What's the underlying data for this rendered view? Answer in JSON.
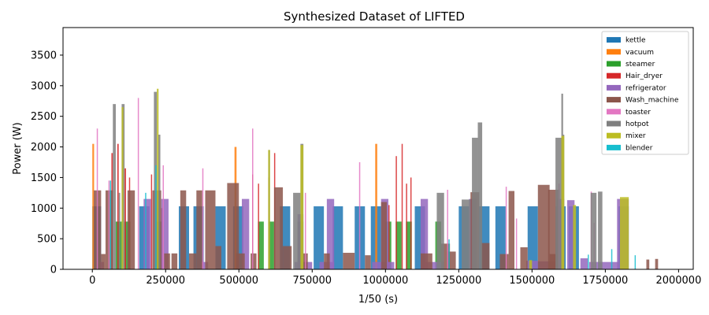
{
  "chart_data": {
    "type": "bar",
    "title": "Synthesized Dataset of LIFTED",
    "xlabel": "1/50 (s)",
    "ylabel": "Power (W)",
    "xlim": [
      -100000,
      2050000
    ],
    "ylim": [
      0,
      3950
    ],
    "xticks": [
      0,
      250000,
      500000,
      750000,
      1000000,
      1250000,
      1500000,
      1750000,
      2000000
    ],
    "xtick_labels": [
      "0",
      "250000",
      "500000",
      "750000",
      "1000000",
      "1250000",
      "1500000",
      "1750000",
      "2000000"
    ],
    "yticks": [
      0,
      500,
      1000,
      1500,
      2000,
      2500,
      3000,
      3500
    ],
    "ytick_labels": [
      "0",
      "500",
      "1000",
      "1500",
      "2000",
      "2500",
      "3000",
      "3500"
    ],
    "legend_position": "top-right",
    "grid": false,
    "series": [
      {
        "name": "kettle",
        "color": "#1f77b4",
        "bars": [
          [
            0,
            30000,
            1030
          ],
          [
            160000,
            195000,
            1030
          ],
          [
            295000,
            330000,
            1030
          ],
          [
            345000,
            380000,
            1030
          ],
          [
            420000,
            455000,
            1030
          ],
          [
            480000,
            515000,
            1030
          ],
          [
            640000,
            675000,
            1030
          ],
          [
            755000,
            790000,
            1030
          ],
          [
            820000,
            855000,
            1030
          ],
          [
            895000,
            930000,
            1030
          ],
          [
            950000,
            985000,
            1030
          ],
          [
            1100000,
            1135000,
            1030
          ],
          [
            1250000,
            1285000,
            1030
          ],
          [
            1320000,
            1355000,
            1030
          ],
          [
            1375000,
            1410000,
            1030
          ],
          [
            1485000,
            1520000,
            1030
          ],
          [
            1580000,
            1615000,
            1030
          ],
          [
            1625000,
            1660000,
            1030
          ],
          [
            1795000,
            1830000,
            1030
          ]
        ]
      },
      {
        "name": "vacuum",
        "color": "#ff7f0e",
        "bars": [
          [
            0,
            6000,
            2050
          ],
          [
            485000,
            492000,
            2000
          ],
          [
            965000,
            972000,
            2050
          ]
        ]
      },
      {
        "name": "steamer",
        "color": "#2ca02c",
        "bars": [
          [
            80000,
            100000,
            780
          ],
          [
            110000,
            130000,
            780
          ],
          [
            215000,
            235000,
            780
          ],
          [
            565000,
            585000,
            780
          ],
          [
            600000,
            620000,
            780
          ],
          [
            700000,
            720000,
            780
          ],
          [
            1000000,
            1020000,
            780
          ],
          [
            1035000,
            1055000,
            780
          ],
          [
            1070000,
            1090000,
            780
          ],
          [
            1170000,
            1190000,
            780
          ]
        ]
      },
      {
        "name": "Hair_dryer",
        "color": "#d62728",
        "bars": [
          [
            65000,
            70000,
            1900
          ],
          [
            85000,
            90000,
            2050
          ],
          [
            110000,
            115000,
            1650
          ],
          [
            125000,
            129000,
            1500
          ],
          [
            200000,
            204000,
            1550
          ],
          [
            235000,
            239000,
            1000
          ],
          [
            545000,
            549000,
            1550
          ],
          [
            565000,
            569000,
            1400
          ],
          [
            600000,
            604000,
            1500
          ],
          [
            620000,
            624000,
            1900
          ],
          [
            1035000,
            1039000,
            1850
          ],
          [
            1055000,
            1059000,
            2050
          ],
          [
            1070000,
            1074000,
            1400
          ],
          [
            1085000,
            1089000,
            1500
          ],
          [
            1010000,
            1014000,
            1050
          ]
        ]
      },
      {
        "name": "refrigerator",
        "color": "#9467bd",
        "bars": [
          [
            25000,
            40000,
            120
          ],
          [
            175000,
            200000,
            1150
          ],
          [
            235000,
            260000,
            1150
          ],
          [
            370000,
            395000,
            120
          ],
          [
            510000,
            535000,
            1150
          ],
          [
            700000,
            720000,
            900
          ],
          [
            690000,
            750000,
            120
          ],
          [
            775000,
            825000,
            120
          ],
          [
            800000,
            825000,
            1150
          ],
          [
            985000,
            1010000,
            1150
          ],
          [
            955000,
            1030000,
            120
          ],
          [
            1120000,
            1145000,
            1150
          ],
          [
            1130000,
            1200000,
            120
          ],
          [
            1285000,
            1310000,
            1150
          ],
          [
            1480000,
            1520000,
            140
          ],
          [
            1520000,
            1595000,
            130
          ],
          [
            1585000,
            1610000,
            1150
          ],
          [
            1620000,
            1645000,
            1130
          ],
          [
            1665000,
            1690000,
            180
          ],
          [
            1695000,
            1795000,
            120
          ],
          [
            1790000,
            1830000,
            1150
          ]
        ]
      },
      {
        "name": "Wash_machine",
        "color": "#8c564b",
        "bars": [
          [
            5000,
            30000,
            1290
          ],
          [
            30000,
            45000,
            250
          ],
          [
            45000,
            70000,
            1290
          ],
          [
            120000,
            145000,
            1290
          ],
          [
            205000,
            235000,
            1290
          ],
          [
            245000,
            265000,
            260
          ],
          [
            270000,
            290000,
            260
          ],
          [
            300000,
            320000,
            1290
          ],
          [
            330000,
            355000,
            260
          ],
          [
            355000,
            375000,
            1290
          ],
          [
            385000,
            420000,
            1290
          ],
          [
            420000,
            440000,
            380
          ],
          [
            460000,
            500000,
            1410
          ],
          [
            490000,
            520000,
            260
          ],
          [
            540000,
            560000,
            260
          ],
          [
            620000,
            650000,
            1340
          ],
          [
            650000,
            680000,
            380
          ],
          [
            710000,
            735000,
            260
          ],
          [
            790000,
            810000,
            260
          ],
          [
            855000,
            895000,
            270
          ],
          [
            930000,
            950000,
            230
          ],
          [
            985000,
            1005000,
            1100
          ],
          [
            1120000,
            1160000,
            260
          ],
          [
            1190000,
            1220000,
            420
          ],
          [
            1210000,
            1240000,
            290
          ],
          [
            1290000,
            1320000,
            1260
          ],
          [
            1325000,
            1355000,
            430
          ],
          [
            1390000,
            1420000,
            250
          ],
          [
            1420000,
            1440000,
            1280
          ],
          [
            1460000,
            1485000,
            360
          ],
          [
            1520000,
            1560000,
            1380
          ],
          [
            1555000,
            1595000,
            1300
          ],
          [
            1560000,
            1590000,
            250
          ],
          [
            1890000,
            1900000,
            160
          ],
          [
            1920000,
            1930000,
            170
          ]
        ]
      },
      {
        "name": "toaster",
        "color": "#e377c2",
        "bars": [
          [
            15000,
            19000,
            2300
          ],
          [
            55000,
            59000,
            1450
          ],
          [
            155000,
            159000,
            2800
          ],
          [
            240000,
            244000,
            1700
          ],
          [
            375000,
            379000,
            1650
          ],
          [
            545000,
            549000,
            2300
          ],
          [
            725000,
            729000,
            1250
          ],
          [
            910000,
            914000,
            1750
          ],
          [
            1210000,
            1214000,
            1300
          ],
          [
            1410000,
            1414000,
            1350
          ],
          [
            1445000,
            1449000,
            830
          ],
          [
            1590000,
            1594000,
            1400
          ],
          [
            1605000,
            1609000,
            1750
          ],
          [
            1700000,
            1704000,
            1270
          ],
          [
            1710000,
            1714000,
            760
          ]
        ]
      },
      {
        "name": "hotpot",
        "color": "#7f7f7f",
        "bars": [
          [
            70000,
            80000,
            2700
          ],
          [
            90000,
            95000,
            1250
          ],
          [
            100000,
            110000,
            2700
          ],
          [
            210000,
            220000,
            2900
          ],
          [
            225000,
            232000,
            2200
          ],
          [
            600000,
            606000,
            1950
          ],
          [
            685000,
            710000,
            1250
          ],
          [
            710000,
            720000,
            2050
          ],
          [
            1175000,
            1200000,
            1250
          ],
          [
            1260000,
            1290000,
            1140
          ],
          [
            1295000,
            1315000,
            2150
          ],
          [
            1315000,
            1330000,
            2400
          ],
          [
            1580000,
            1605000,
            2150
          ],
          [
            1600000,
            1606000,
            2870
          ],
          [
            1605000,
            1610000,
            2200
          ],
          [
            1700000,
            1720000,
            1250
          ],
          [
            1725000,
            1740000,
            1270
          ]
        ]
      },
      {
        "name": "mixer",
        "color": "#bcbd22",
        "bars": [
          [
            100000,
            106000,
            2650
          ],
          [
            220000,
            226000,
            2950
          ],
          [
            600000,
            606000,
            1950
          ],
          [
            710000,
            720000,
            2030
          ],
          [
            1600000,
            1610000,
            2180
          ],
          [
            1640000,
            1650000,
            1050
          ],
          [
            1800000,
            1830000,
            1180
          ],
          [
            1490000,
            1500000,
            150
          ]
        ]
      },
      {
        "name": "blender",
        "color": "#17becf",
        "bars": [
          [
            60000,
            64000,
            1450
          ],
          [
            180000,
            184000,
            1250
          ],
          [
            215000,
            219000,
            1700
          ],
          [
            1215000,
            1219000,
            490
          ],
          [
            1690000,
            1694000,
            240
          ],
          [
            1770000,
            1774000,
            330
          ],
          [
            1850000,
            1854000,
            230
          ]
        ]
      }
    ]
  }
}
